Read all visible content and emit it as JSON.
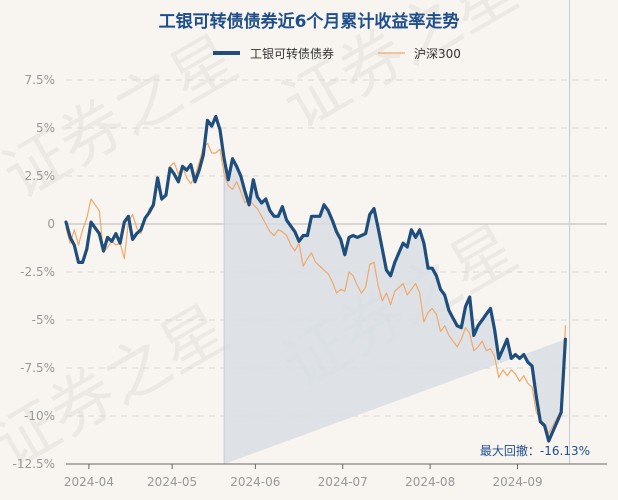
{
  "chart_data": {
    "type": "line",
    "title": "工银可转债债券近6个月累计收益率走势",
    "watermark": "证券之星",
    "legend_position": "top-center",
    "grid": true,
    "colors": {
      "fund": "#1f4e7c",
      "index": "#f0a86c",
      "drawdown_fill": "#d7dde3",
      "grid": "#d9d9d9",
      "zero": "#cccccc"
    },
    "ylim": [
      -12.5,
      7.5
    ],
    "y_ticks": [
      7.5,
      5,
      2.5,
      0,
      -2.5,
      -5,
      -7.5,
      -10,
      -12.5
    ],
    "y_tick_labels": [
      "7.5%",
      "5%",
      "2.5%",
      "0",
      "-2.5%",
      "-5%",
      "-7.5%",
      "-10%",
      "-12.5%"
    ],
    "x_tick_labels": [
      "2024-04",
      "2024-05",
      "2024-06",
      "2024-07",
      "2024-08",
      "2024-09"
    ],
    "x_tick_positions": [
      5.5,
      25.5,
      45.5,
      66.5,
      87.5,
      108.5
    ],
    "x_count": 131,
    "drawdown_range": [
      38,
      121
    ],
    "drawdown_label": "最大回撤：-16.13%",
    "series": [
      {
        "name": "工银可转债债券",
        "values": [
          0.1,
          -0.7,
          -1.1,
          -2.0,
          -2.0,
          -1.3,
          0.1,
          -0.2,
          -0.5,
          -1.4,
          -0.7,
          -0.9,
          -0.5,
          -1.0,
          0.1,
          0.4,
          -0.8,
          -0.5,
          -0.3,
          0.3,
          0.6,
          1.0,
          2.4,
          1.3,
          1.5,
          2.9,
          2.6,
          2.2,
          3.0,
          2.8,
          3.1,
          2.2,
          2.8,
          3.6,
          5.4,
          5.1,
          5.6,
          4.9,
          3.4,
          2.3,
          3.4,
          3.0,
          2.5,
          1.7,
          1.0,
          2.3,
          1.4,
          1.1,
          1.3,
          0.7,
          0.4,
          0.4,
          0.9,
          0.2,
          -0.1,
          -0.4,
          -0.9,
          -0.6,
          -0.6,
          0.4,
          0.4,
          0.4,
          1.0,
          0.7,
          0.2,
          -0.4,
          -0.8,
          -1.6,
          -0.7,
          -0.6,
          -0.7,
          -0.6,
          -0.5,
          0.5,
          0.8,
          -0.2,
          -1.3,
          -2.4,
          -2.7,
          -2.0,
          -1.5,
          -1.0,
          -1.2,
          -0.3,
          -0.7,
          -0.3,
          -1.0,
          -2.3,
          -2.3,
          -2.7,
          -3.4,
          -3.7,
          -4.5,
          -4.9,
          -5.3,
          -5.4,
          -4.3,
          -3.8,
          -5.8,
          -5.3,
          -5.0,
          -4.7,
          -4.4,
          -5.5,
          -7.0,
          -6.5,
          -6.0,
          -7.0,
          -6.8,
          -7.0,
          -6.8,
          -7.2,
          -7.4,
          -9.0,
          -10.3,
          -10.5,
          -11.3,
          -10.8,
          -10.3,
          -9.8,
          -6.0
        ]
      },
      {
        "name": "沪深300",
        "values": [
          -0.2,
          -1.0,
          -0.3,
          -1.1,
          -0.3,
          0.3,
          1.3,
          1.0,
          0.7,
          -1.5,
          -1.2,
          -0.9,
          -1.1,
          -1.0,
          -1.8,
          0.1,
          0.5,
          -0.2,
          -0.5,
          0.2,
          0.8,
          1.0,
          2.1,
          1.2,
          1.6,
          3.0,
          3.2,
          2.6,
          3.0,
          2.4,
          2.1,
          2.5,
          3.2,
          4.0,
          4.2,
          3.7,
          3.7,
          3.9,
          2.6,
          2.0,
          1.8,
          2.2,
          1.7,
          1.1,
          1.3,
          1.0,
          0.8,
          0.4,
          0.0,
          -0.4,
          -0.6,
          -0.3,
          -0.4,
          -0.6,
          -1.1,
          -1.4,
          -1.0,
          -2.2,
          -1.8,
          -1.5,
          -2.0,
          -2.2,
          -2.4,
          -2.6,
          -3.0,
          -3.6,
          -3.4,
          -3.5,
          -2.5,
          -2.7,
          -3.2,
          -3.6,
          -3.3,
          -2.1,
          -2.0,
          -3.2,
          -4.0,
          -3.6,
          -4.2,
          -3.5,
          -3.3,
          -3.1,
          -3.7,
          -3.4,
          -3.1,
          -3.6,
          -5.1,
          -4.6,
          -4.4,
          -4.7,
          -5.6,
          -5.3,
          -5.8,
          -6.1,
          -6.4,
          -6.0,
          -5.4,
          -5.7,
          -6.6,
          -6.4,
          -6.1,
          -6.6,
          -6.5,
          -6.9,
          -8.0,
          -7.6,
          -7.9,
          -7.6,
          -7.8,
          -8.2,
          -7.9,
          -8.3,
          -8.5,
          -9.8,
          -10.2,
          -10.4,
          -10.9,
          -10.5,
          -10.1,
          -9.7,
          -5.3
        ]
      }
    ]
  }
}
